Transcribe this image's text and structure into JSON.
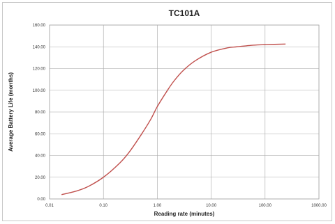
{
  "chart_data": {
    "type": "line",
    "title": "TC101A",
    "xlabel": "Reading rate (minutes)",
    "ylabel": "Average Battery Life (months)",
    "x_scale": "log",
    "xlim": [
      0.01,
      1000
    ],
    "ylim": [
      0,
      160
    ],
    "x_ticks": [
      "0.01",
      "0.10",
      "1.00",
      "10.00",
      "100.00",
      "1000.00"
    ],
    "y_ticks": [
      "0.00",
      "20.00",
      "40.00",
      "60.00",
      "80.00",
      "100.00",
      "120.00",
      "140.00",
      "160.00"
    ],
    "grid": true,
    "legend": "none",
    "series": [
      {
        "color": "#c0504d",
        "x": [
          0.0167,
          0.03,
          0.05,
          0.1,
          0.2,
          0.3,
          0.5,
          0.75,
          1,
          1.5,
          2,
          3,
          5,
          10,
          20,
          30,
          60,
          100,
          240
        ],
        "y": [
          4,
          7,
          11,
          20,
          33,
          43,
          59,
          73,
          85,
          99,
          108,
          118,
          127,
          135,
          139,
          140,
          141.5,
          142,
          142.5
        ]
      }
    ]
  }
}
